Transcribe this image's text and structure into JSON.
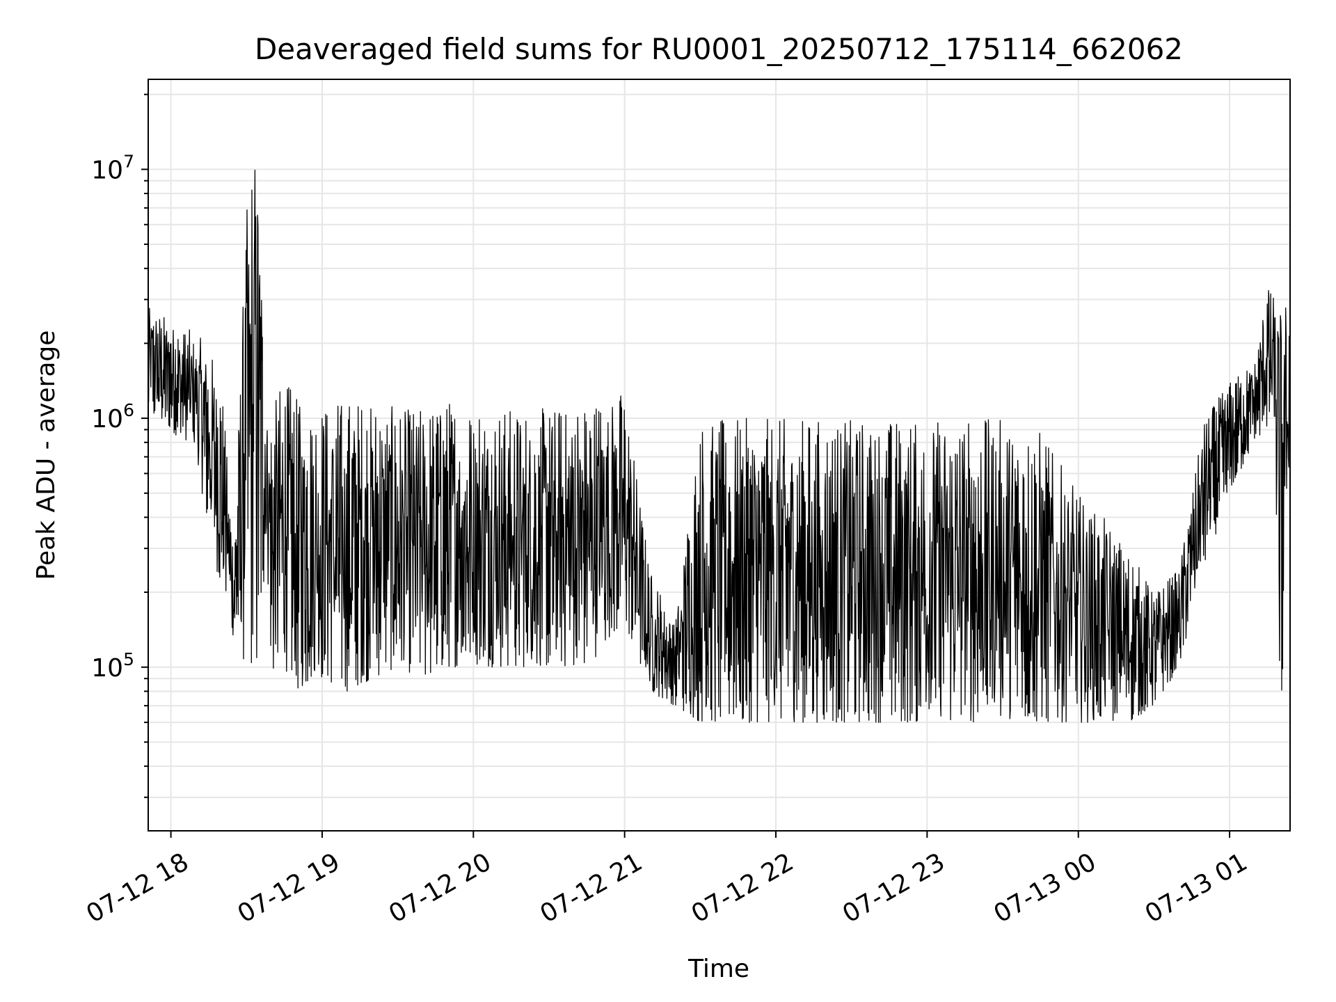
{
  "chart_data": {
    "type": "line",
    "title": "Deaveraged field sums for RU0001_20250712_175114_662062",
    "xlabel": "Time",
    "ylabel": "Peak ADU - average",
    "y_scale": "log",
    "grid": true,
    "legend": "none",
    "line_color": "#000000",
    "grid_color": "#e6e6e6",
    "xlim": [
      "2025-07-12 17:51",
      "2025-07-13 01:24"
    ],
    "ylim": [
      22000,
      23000000
    ],
    "x_ticks": [
      "07-12 18",
      "07-12 19",
      "07-12 20",
      "07-12 21",
      "07-12 22",
      "07-12 23",
      "07-13 00",
      "07-13 01"
    ],
    "x_tick_times": [
      "2025-07-12 18:00",
      "2025-07-12 19:00",
      "2025-07-12 20:00",
      "2025-07-12 21:00",
      "2025-07-12 22:00",
      "2025-07-12 23:00",
      "2025-07-13 00:00",
      "2025-07-13 01:00"
    ],
    "y_ticks": [
      {
        "base": "10",
        "exp": "5",
        "value": 100000
      },
      {
        "base": "10",
        "exp": "6",
        "value": 1000000
      },
      {
        "base": "10",
        "exp": "7",
        "value": 10000000
      }
    ],
    "series": [
      {
        "x": [
          "2025-07-12 17:51",
          "2025-07-12 18:00",
          "2025-07-12 18:10",
          "2025-07-12 18:14",
          "2025-07-12 18:20",
          "2025-07-12 18:25",
          "2025-07-12 18:30",
          "2025-07-12 18:34",
          "2025-07-12 18:38",
          "2025-07-12 18:40",
          "2025-07-12 18:45",
          "2025-07-12 18:50",
          "2025-07-12 19:00",
          "2025-07-12 19:10",
          "2025-07-12 19:20",
          "2025-07-12 19:30",
          "2025-07-12 19:40",
          "2025-07-12 19:50",
          "2025-07-12 20:00",
          "2025-07-12 20:15",
          "2025-07-12 20:30",
          "2025-07-12 20:45",
          "2025-07-12 21:00",
          "2025-07-12 21:10",
          "2025-07-12 21:20",
          "2025-07-12 21:30",
          "2025-07-12 21:40",
          "2025-07-12 21:50",
          "2025-07-12 22:00",
          "2025-07-12 22:15",
          "2025-07-12 22:30",
          "2025-07-12 22:45",
          "2025-07-12 23:00",
          "2025-07-12 23:15",
          "2025-07-12 23:30",
          "2025-07-12 23:45",
          "2025-07-13 00:00",
          "2025-07-13 00:10",
          "2025-07-13 00:20",
          "2025-07-13 00:30",
          "2025-07-13 00:40",
          "2025-07-13 00:50",
          "2025-07-13 01:00",
          "2025-07-13 01:10",
          "2025-07-13 01:15",
          "2025-07-13 01:18",
          "2025-07-13 01:20",
          "2025-07-13 01:24"
        ],
        "y_low": [
          1000000,
          900000,
          700000,
          400000,
          200000,
          130000,
          100000,
          90000,
          300000,
          90000,
          100000,
          80000,
          90000,
          80000,
          90000,
          100000,
          90000,
          100000,
          100000,
          100000,
          100000,
          100000,
          150000,
          80000,
          70000,
          60000,
          60000,
          60000,
          60000,
          60000,
          60000,
          60000,
          60000,
          60000,
          60000,
          60000,
          60000,
          60000,
          60000,
          70000,
          100000,
          250000,
          500000,
          800000,
          900000,
          900000,
          40000,
          900000
        ],
        "y_high": [
          2800000,
          2500000,
          2200000,
          2000000,
          1500000,
          300000,
          7000000,
          17000000,
          1100000,
          1100000,
          1500000,
          1200000,
          1200000,
          1200000,
          1200000,
          1100000,
          1100000,
          1200000,
          1200000,
          1100000,
          1100000,
          1200000,
          1300000,
          250000,
          150000,
          1000000,
          1000000,
          1000000,
          1000000,
          1000000,
          1000000,
          1000000,
          1000000,
          1000000,
          1000000,
          900000,
          500000,
          400000,
          300000,
          200000,
          250000,
          1000000,
          1400000,
          1700000,
          3500000,
          3000000,
          3000000,
          3000000
        ]
      }
    ]
  }
}
